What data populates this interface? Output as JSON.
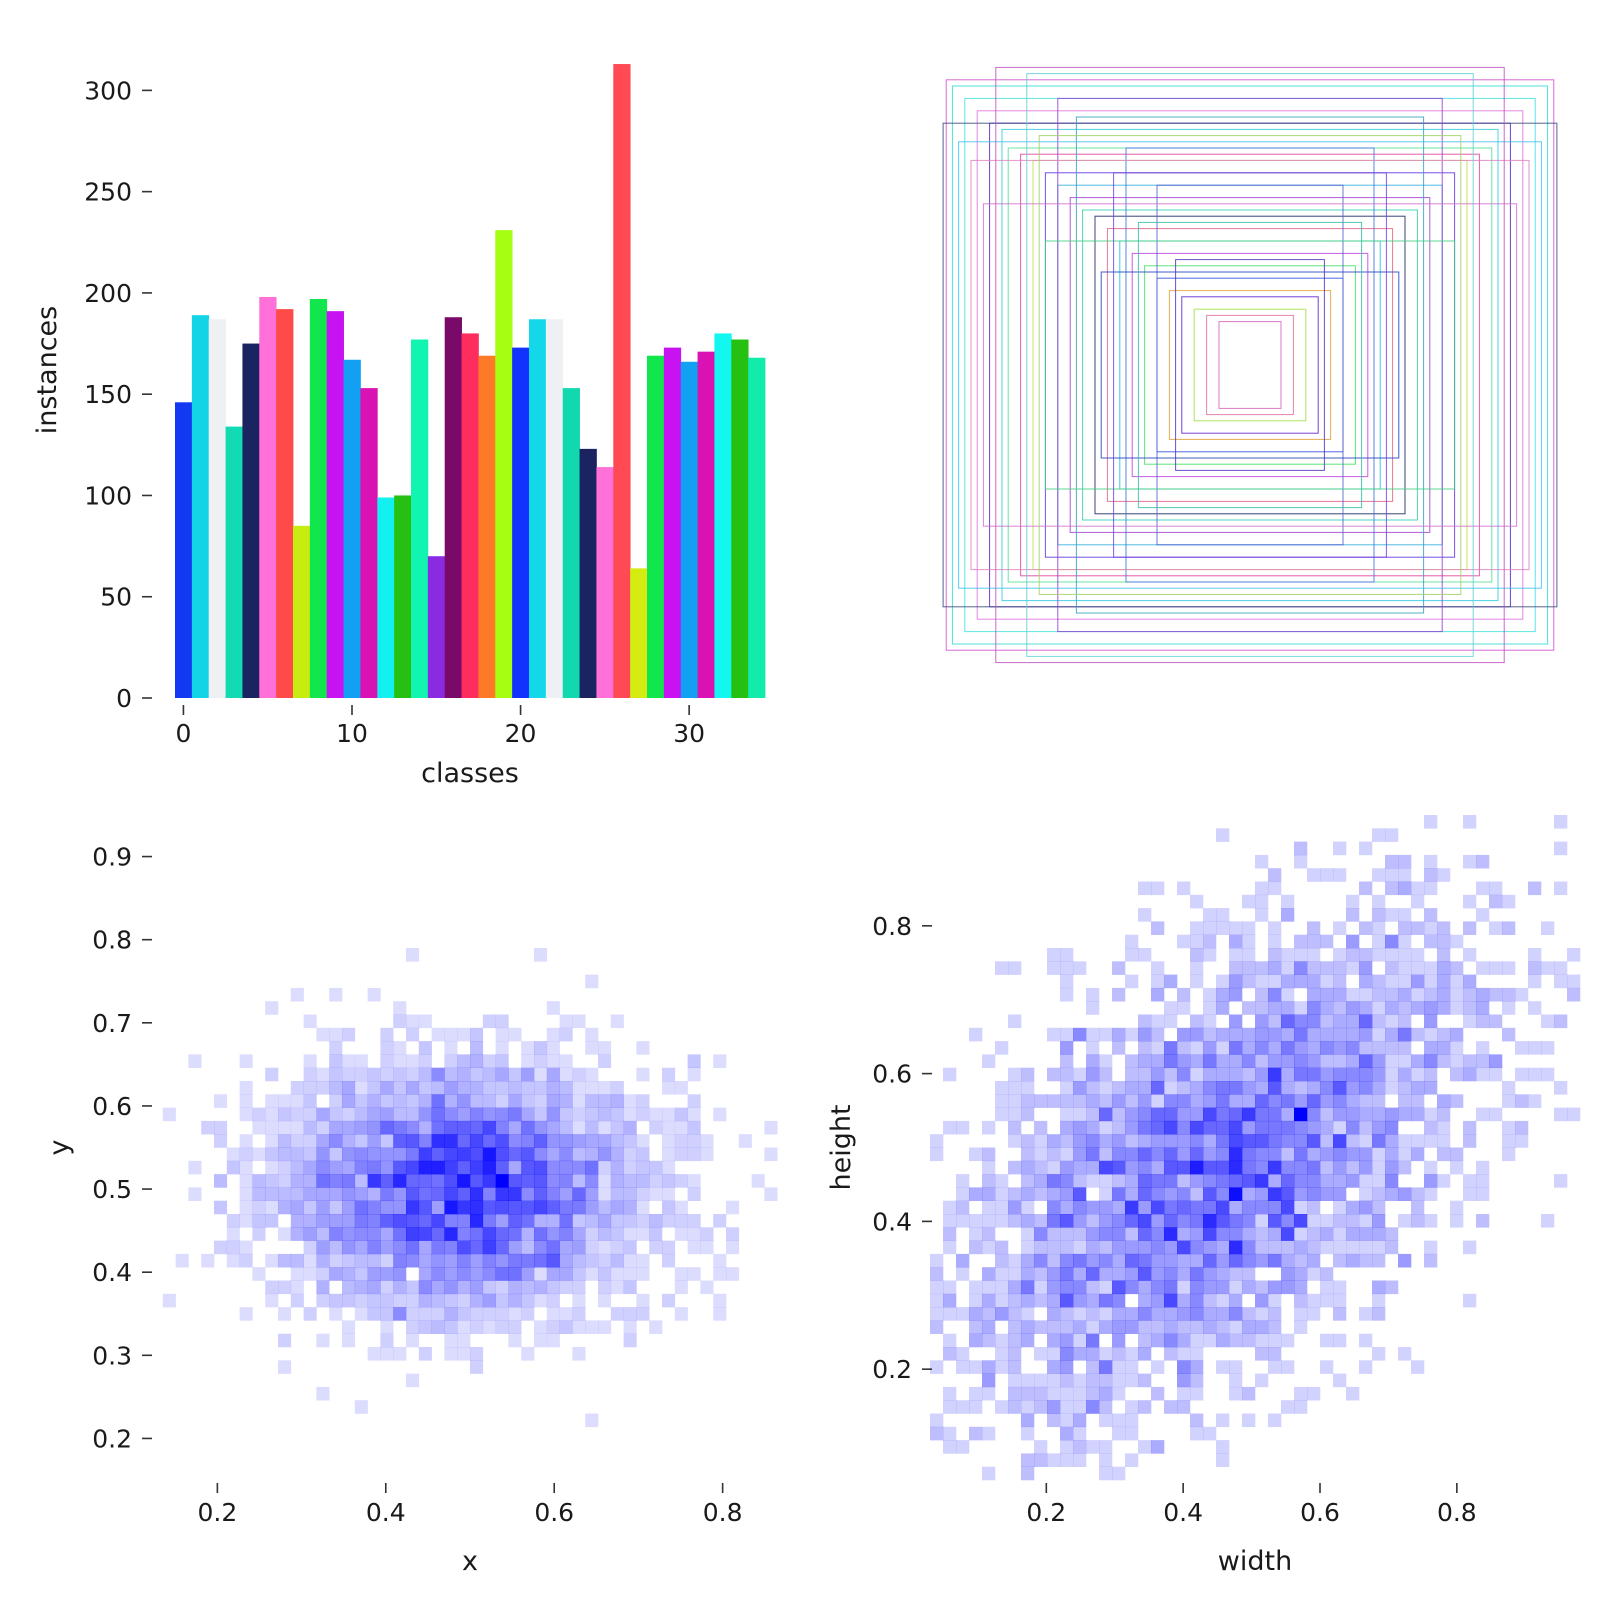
{
  "chart_data": [
    {
      "type": "bar",
      "panel": "top-left",
      "xlabel": "classes",
      "ylabel": "instances",
      "categories": [
        0,
        1,
        2,
        3,
        4,
        5,
        6,
        7,
        8,
        9,
        10,
        11,
        12,
        13,
        14,
        15,
        16,
        17,
        18,
        19,
        20,
        21,
        22,
        23,
        24,
        25,
        26,
        27,
        28,
        29,
        30,
        31,
        32,
        33,
        34
      ],
      "values": [
        146,
        189,
        187,
        134,
        175,
        198,
        192,
        85,
        197,
        191,
        167,
        153,
        99,
        100,
        177,
        70,
        188,
        180,
        169,
        231,
        173,
        187,
        187,
        153,
        123,
        114,
        313,
        64,
        169,
        173,
        166,
        171,
        180,
        177,
        168
      ],
      "colors": [
        "#1238f2",
        "#12d4e6",
        "#eef0f4",
        "#12dbb4",
        "#1a2461",
        "#ff70d9",
        "#ff4a4a",
        "#c8ec12",
        "#12e64d",
        "#c712f2",
        "#12a0f2",
        "#d912b4",
        "#12f0f0",
        "#25c012",
        "#12f5b0",
        "#8a2be2",
        "#7a0a6a",
        "#ff2d5e",
        "#ff7a26",
        "#a6ff12",
        "#1232ff",
        "#12d8ea",
        "#eef0f4",
        "#12d8b0",
        "#1a2461",
        "#ff70d9",
        "#ff4a54",
        "#d4ec12",
        "#12e64d",
        "#c812f2",
        "#12a0f2",
        "#d912b4",
        "#12f8f0",
        "#25c012",
        "#12ebaa"
      ],
      "xticks": [
        0,
        10,
        20,
        30
      ],
      "yticks": [
        0,
        50,
        100,
        150,
        200,
        250,
        300
      ],
      "xlim": [
        -0.5,
        34.5
      ],
      "ylim": [
        0,
        315
      ]
    },
    {
      "type": "rectangles",
      "panel": "top-right",
      "description_free": true,
      "boxes": [
        {
          "w": 0.98,
          "h": 0.92,
          "color": "#d050d0"
        },
        {
          "w": 0.96,
          "h": 0.9,
          "color": "#30d8d8"
        },
        {
          "w": 0.92,
          "h": 0.86,
          "color": "#40e0e0"
        },
        {
          "w": 0.88,
          "h": 0.82,
          "color": "#e070e0"
        },
        {
          "w": 0.84,
          "h": 0.78,
          "color": "#5020c0"
        },
        {
          "w": 0.8,
          "h": 0.76,
          "color": "#30c8e0"
        },
        {
          "w": 0.78,
          "h": 0.7,
          "color": "#50e090"
        },
        {
          "w": 0.74,
          "h": 0.68,
          "color": "#e040a0"
        },
        {
          "w": 0.7,
          "h": 0.66,
          "color": "#c0e040"
        },
        {
          "w": 0.66,
          "h": 0.62,
          "color": "#6030e0"
        },
        {
          "w": 0.62,
          "h": 0.58,
          "color": "#30b0e0"
        },
        {
          "w": 0.58,
          "h": 0.54,
          "color": "#a040d0"
        },
        {
          "w": 0.54,
          "h": 0.5,
          "color": "#30d0b0"
        },
        {
          "w": 0.5,
          "h": 0.48,
          "color": "#1a2461"
        },
        {
          "w": 0.46,
          "h": 0.44,
          "color": "#e06080"
        },
        {
          "w": 0.42,
          "h": 0.4,
          "color": "#20c0e0"
        },
        {
          "w": 0.38,
          "h": 0.36,
          "color": "#c040e0"
        },
        {
          "w": 0.34,
          "h": 0.32,
          "color": "#40e060"
        },
        {
          "w": 0.3,
          "h": 0.28,
          "color": "#3050e0"
        },
        {
          "w": 0.26,
          "h": 0.24,
          "color": "#e0a030"
        },
        {
          "w": 0.22,
          "h": 0.22,
          "color": "#6020d0"
        },
        {
          "w": 0.18,
          "h": 0.18,
          "color": "#a0e040"
        },
        {
          "w": 0.14,
          "h": 0.16,
          "color": "#e070a0"
        },
        {
          "w": 0.1,
          "h": 0.14,
          "color": "#d060c0"
        },
        {
          "w": 0.99,
          "h": 0.78,
          "color": "#3a4a7a"
        },
        {
          "w": 0.62,
          "h": 0.86,
          "color": "#9040d0"
        },
        {
          "w": 0.4,
          "h": 0.7,
          "color": "#4070e0"
        },
        {
          "w": 0.9,
          "h": 0.66,
          "color": "#e080c0"
        },
        {
          "w": 0.72,
          "h": 0.94,
          "color": "#60d0d0"
        },
        {
          "w": 0.56,
          "h": 0.8,
          "color": "#30a0c0"
        },
        {
          "w": 0.3,
          "h": 0.58,
          "color": "#5060d0"
        },
        {
          "w": 0.86,
          "h": 0.52,
          "color": "#d070d0"
        },
        {
          "w": 0.66,
          "h": 0.4,
          "color": "#40d080"
        },
        {
          "w": 0.48,
          "h": 0.3,
          "color": "#2040c0"
        },
        {
          "w": 0.94,
          "h": 0.72,
          "color": "#40c0f0"
        },
        {
          "w": 0.82,
          "h": 0.96,
          "color": "#c050c0"
        },
        {
          "w": 0.68,
          "h": 0.74,
          "color": "#a0d060"
        },
        {
          "w": 0.44,
          "h": 0.62,
          "color": "#7040e0"
        },
        {
          "w": 0.36,
          "h": 0.46,
          "color": "#30c0a0"
        },
        {
          "w": 0.24,
          "h": 0.34,
          "color": "#5030c0"
        }
      ]
    },
    {
      "type": "heatmap",
      "panel": "bottom-left",
      "xlabel": "x",
      "ylabel": "y",
      "color": "#0000ff",
      "xlim": [
        0.12,
        0.88
      ],
      "ylim": [
        0.15,
        0.95
      ],
      "xticks": [
        0.2,
        0.4,
        0.6,
        0.8
      ],
      "yticks": [
        0.2,
        0.3,
        0.4,
        0.5,
        0.6,
        0.7,
        0.8,
        0.9
      ],
      "center": [
        0.49,
        0.5
      ],
      "spread": [
        0.11,
        0.075
      ],
      "bins": 50
    },
    {
      "type": "heatmap",
      "panel": "bottom-right",
      "xlabel": "width",
      "ylabel": "height",
      "color": "#0000ff",
      "xlim": [
        0.03,
        0.98
      ],
      "ylim": [
        0.05,
        0.95
      ],
      "xticks": [
        0.2,
        0.4,
        0.6,
        0.8
      ],
      "yticks": [
        0.2,
        0.4,
        0.6,
        0.8
      ],
      "correlation": 0.55,
      "bins": 50
    }
  ]
}
